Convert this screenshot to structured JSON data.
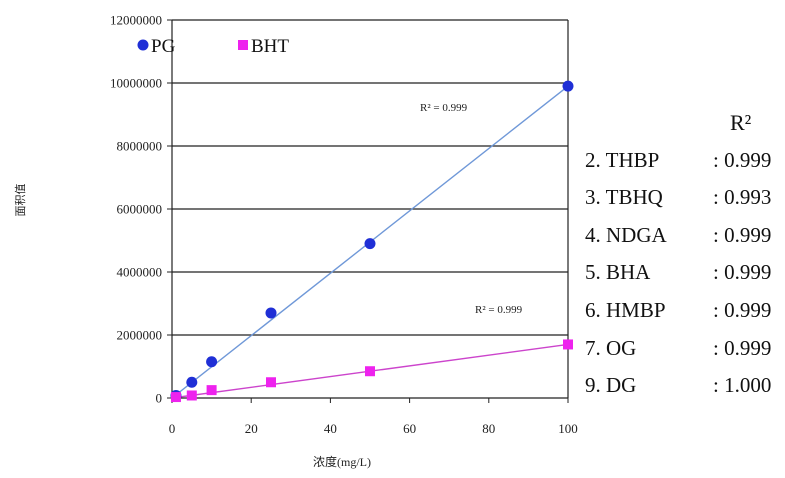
{
  "chart_data": {
    "type": "scatter",
    "xlabel": "浓度(mg/L)",
    "ylabel": "面积值",
    "xlim": [
      0,
      100
    ],
    "ylim": [
      0,
      12000000
    ],
    "xticks": [
      "0",
      "20",
      "40",
      "60",
      "80",
      "100"
    ],
    "yticks": [
      "0",
      "2000000",
      "4000000",
      "6000000",
      "8000000",
      "10000000",
      "12000000"
    ],
    "grid": "horizontal",
    "legend": "top-left",
    "series": [
      {
        "name": "PG",
        "color": "#1f2fd6",
        "line_color": "#6f98d8",
        "marker": "circle",
        "points": [
          [
            1,
            80000
          ],
          [
            5,
            500000
          ],
          [
            10,
            1150000
          ],
          [
            25,
            2700000
          ],
          [
            50,
            4900000
          ],
          [
            100,
            9900000
          ]
        ],
        "fit": [
          [
            0,
            0
          ],
          [
            100,
            9900000
          ]
        ],
        "r2_label": "R² = 0.999"
      },
      {
        "name": "BHT",
        "color": "#ee22ee",
        "line_color": "#cc44cc",
        "marker": "square",
        "points": [
          [
            1,
            30000
          ],
          [
            5,
            80000
          ],
          [
            10,
            250000
          ],
          [
            25,
            500000
          ],
          [
            50,
            850000
          ],
          [
            100,
            1700000
          ]
        ],
        "fit": [
          [
            0,
            0
          ],
          [
            100,
            1700000
          ]
        ],
        "r2_label": "R² = 0.999"
      }
    ]
  },
  "r2_table": {
    "title": "R²",
    "rows": [
      {
        "compound": "2. THBP",
        "value": ": 0.999"
      },
      {
        "compound": "3. TBHQ",
        "value": ": 0.993"
      },
      {
        "compound": "4. NDGA",
        "value": ": 0.999"
      },
      {
        "compound": "5. BHA",
        "value": ": 0.999"
      },
      {
        "compound": "6. HMBP",
        "value": ": 0.999"
      },
      {
        "compound": "7. OG",
        "value": ": 0.999"
      },
      {
        "compound": "9. DG",
        "value": ": 1.000"
      }
    ]
  }
}
